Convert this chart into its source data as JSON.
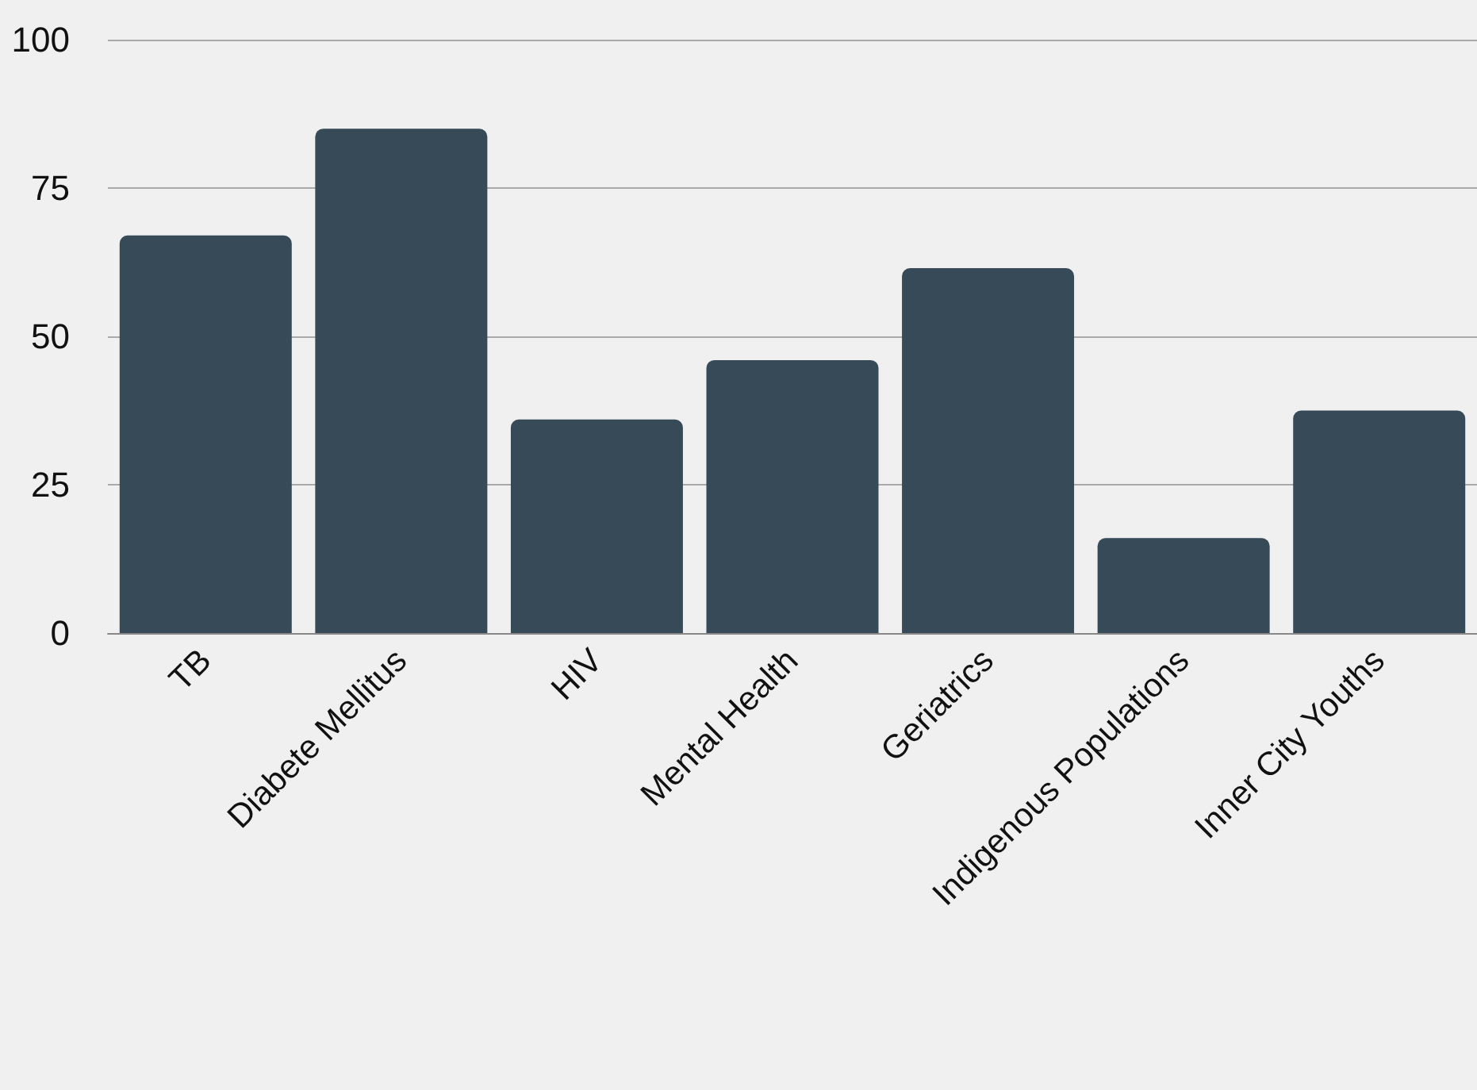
{
  "chart_data": {
    "type": "bar",
    "categories": [
      "TB",
      "Diabete Mellitus",
      "HIV",
      "Mental Health",
      "Geriatrics",
      "Indigenous Populations",
      "Inner City Youths"
    ],
    "values": [
      67,
      85,
      36,
      46,
      61.5,
      16,
      37.5
    ],
    "color": "#374a58",
    "ylim": [
      0,
      100
    ],
    "yticks": [
      0,
      25,
      50,
      75,
      100
    ],
    "grid": "y"
  }
}
